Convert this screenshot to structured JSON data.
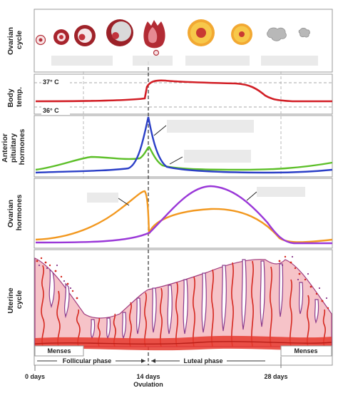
{
  "rows": {
    "ovarian_cycle": [
      "Ovarian",
      "cycle"
    ],
    "body_temp": [
      "Body",
      "temp."
    ],
    "pituitary": [
      "Anterior",
      "pituitary",
      "hormones"
    ],
    "ovarian_hormones": [
      "Ovarian",
      "hormones"
    ],
    "uterine": [
      "Uterine",
      "cycle"
    ]
  },
  "temperature": {
    "high": "37° C",
    "low": "36° C"
  },
  "phases": {
    "menses": "Menses",
    "follicular": "Follicular phase",
    "luteal": "Luteal phase"
  },
  "days": {
    "start": "0 days",
    "mid": "14 days",
    "end": "28 days",
    "ovulation": "Ovulation"
  },
  "colors": {
    "temperature": "#d21f26",
    "lh": "#2b3fc7",
    "fsh": "#5cbf28",
    "estrogen": "#f2981f",
    "progesterone": "#9a38d8",
    "follicle": "#a8242d",
    "corpus_luteum": "#f7c84a",
    "endometrium": "#f6c3c8",
    "vessel": "#d5281f",
    "gland": "#8a3a8c"
  }
}
